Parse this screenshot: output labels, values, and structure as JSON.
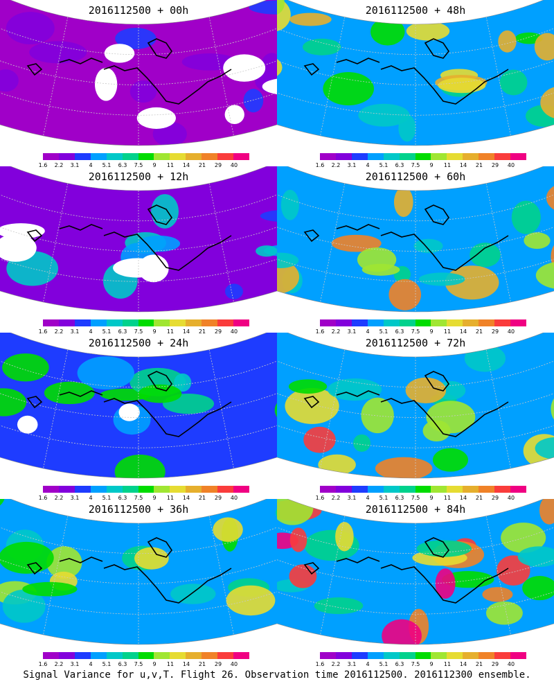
{
  "footer": "Signal Variance for u,v,T. Flight 26. Observation time 2016112500. 2016112300 ensemble.",
  "colorbar": {
    "labels": [
      "1.6",
      "2.2",
      "3.1",
      "4",
      "5.1",
      "6.3",
      "7.5",
      "9",
      "11",
      "14",
      "21",
      "29",
      "40"
    ],
    "colors": [
      "#a000c8",
      "#8200dc",
      "#1e3cff",
      "#00a0ff",
      "#00c8c8",
      "#00d28c",
      "#00dc00",
      "#a0e632",
      "#e6dc32",
      "#e6af2d",
      "#f08228",
      "#fa3c3c",
      "#f00082"
    ]
  },
  "panels": [
    {
      "title": "2016112500 + 00h",
      "intensity": 0
    },
    {
      "title": "2016112500 + 12h",
      "intensity": 1
    },
    {
      "title": "2016112500 + 24h",
      "intensity": 2
    },
    {
      "title": "2016112500 + 36h",
      "intensity": 3
    },
    {
      "title": "2016112500 + 48h",
      "intensity": 4
    },
    {
      "title": "2016112500 + 60h",
      "intensity": 5
    },
    {
      "title": "2016112500 + 72h",
      "intensity": 6
    },
    {
      "title": "2016112500 + 84h",
      "intensity": 7
    }
  ]
}
